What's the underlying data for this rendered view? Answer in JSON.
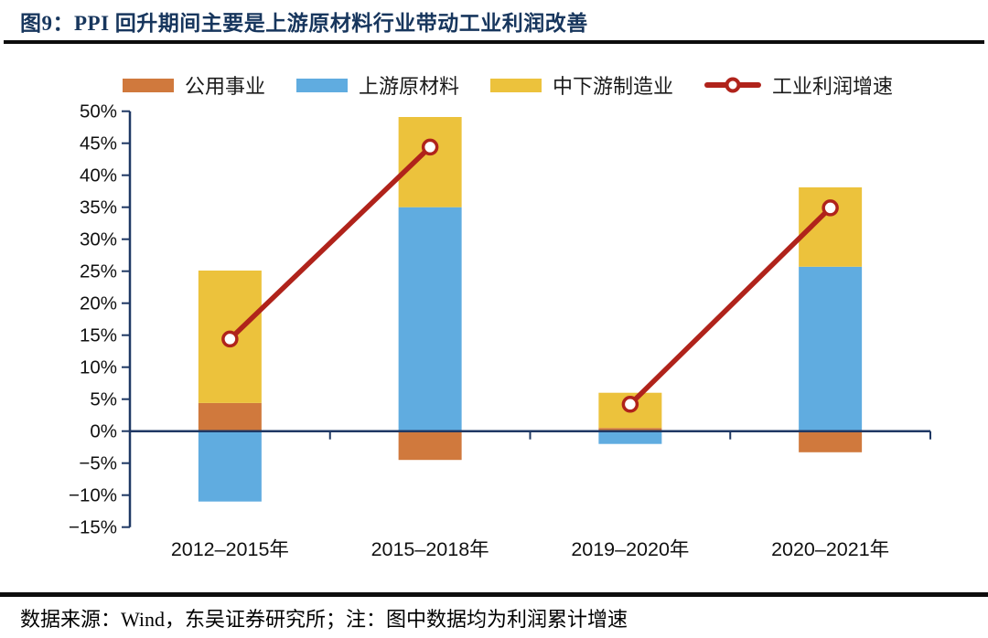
{
  "figure": {
    "title": "图9：PPI 回升期间主要是上游原材料行业带动工业利润改善"
  },
  "footer": {
    "text": "数据来源：Wind，东吴证券研究所；注：图中数据均为利润累计增速"
  },
  "colors": {
    "title_navy": "#17365D",
    "axis_navy": "#1F3864",
    "utilities_orange": "#D0793D",
    "materials_blue": "#60ACE0",
    "manufacturing_yellow": "#ECC23C",
    "line_red": "#B0231B",
    "divider_black": "#0d0d0d"
  },
  "chart_data": {
    "type": "bar",
    "stacked": true,
    "overlay_line": true,
    "title": "图9：PPI 回升期间主要是上游原材料行业带动工业利润改善",
    "categories": [
      "2012–2015年",
      "2015–2018年",
      "2019–2020年",
      "2020–2021年"
    ],
    "series": [
      {
        "name": "公用事业",
        "type": "bar",
        "color": "#D0793D",
        "values": [
          4.4,
          -4.5,
          0.5,
          -3.3
        ]
      },
      {
        "name": "上游原材料",
        "type": "bar",
        "color": "#60ACE0",
        "values": [
          -11.0,
          35.0,
          -2.0,
          25.7
        ]
      },
      {
        "name": "中下游制造业",
        "type": "bar",
        "color": "#ECC23C",
        "values": [
          20.7,
          14.1,
          5.5,
          12.4
        ]
      },
      {
        "name": "工业利润增速",
        "type": "line",
        "color": "#B0231B",
        "values": [
          14.4,
          44.4,
          4.2,
          34.9
        ],
        "segments": [
          [
            0,
            1
          ],
          [
            2,
            3
          ]
        ]
      }
    ],
    "ylim": [
      -15,
      50
    ],
    "ytick_step": 5,
    "ytick_suffix": "%",
    "xlabel": "",
    "ylabel": "",
    "grid": false,
    "legend_position": "top"
  }
}
